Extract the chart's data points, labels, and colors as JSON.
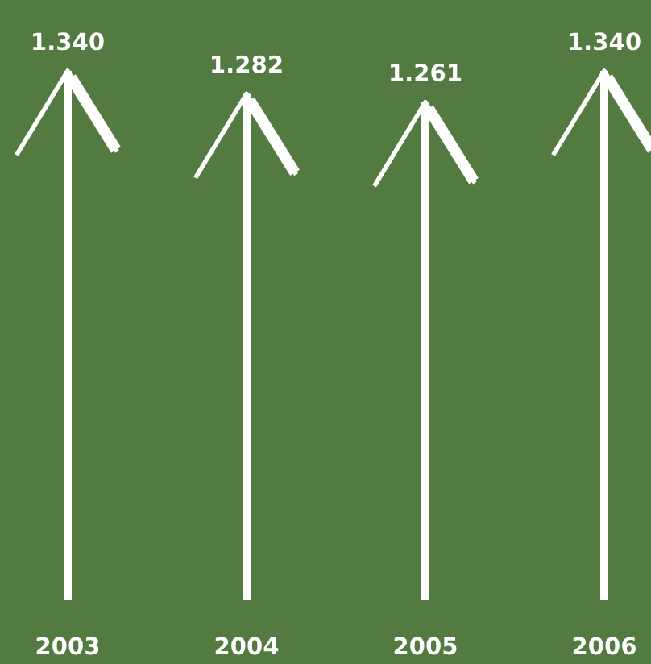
{
  "chart_data": {
    "type": "bar",
    "categories": [
      "2003",
      "2004",
      "2005",
      "2006"
    ],
    "values": [
      1.34,
      1.282,
      1.261,
      1.34
    ],
    "value_labels": [
      "1.340",
      "1.282",
      "1.261",
      "1.340"
    ],
    "color": "#ffffff"
  }
}
